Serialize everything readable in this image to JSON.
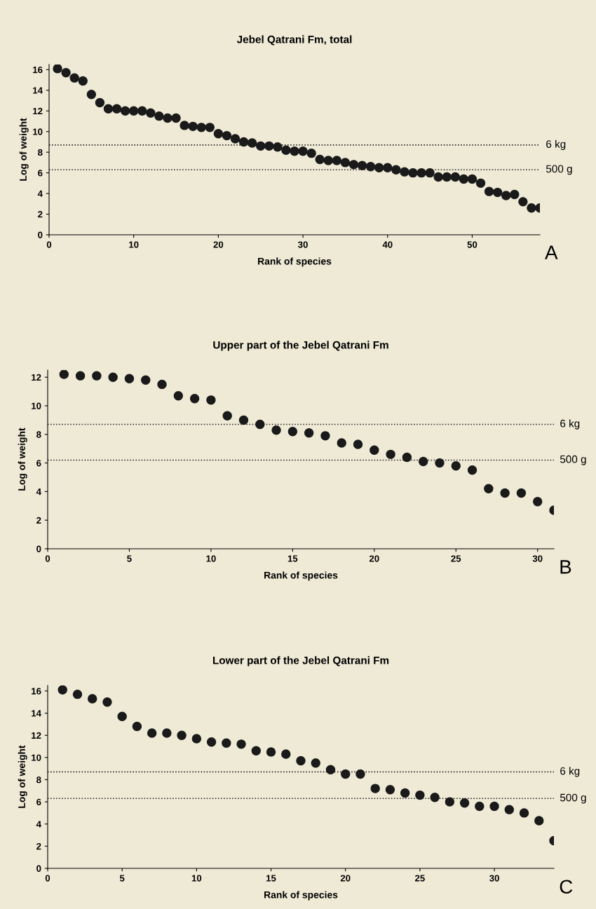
{
  "chart_data": [
    {
      "type": "scatter",
      "title": "Jebel Qatrani Fm, total",
      "xlabel": "Rank of species",
      "ylabel": "Log of weight",
      "marker": "circle",
      "grid": false,
      "legend": false,
      "x": [
        1,
        2,
        3,
        4,
        5,
        6,
        7,
        8,
        9,
        10,
        11,
        12,
        13,
        14,
        15,
        16,
        17,
        18,
        19,
        20,
        21,
        22,
        23,
        24,
        25,
        26,
        27,
        28,
        29,
        30,
        31,
        32,
        33,
        34,
        35,
        36,
        37,
        38,
        39,
        40,
        41,
        42,
        43,
        44,
        45,
        46,
        47,
        48,
        49,
        50,
        51,
        52,
        53,
        54,
        55,
        56,
        57,
        58
      ],
      "series": [
        {
          "color": "#1a1a1a",
          "values": [
            16.1,
            15.7,
            15.2,
            14.9,
            13.6,
            12.8,
            12.2,
            12.2,
            12.0,
            12.0,
            12.0,
            11.8,
            11.5,
            11.3,
            11.3,
            10.6,
            10.5,
            10.4,
            10.4,
            9.8,
            9.6,
            9.3,
            9.0,
            8.9,
            8.6,
            8.6,
            8.5,
            8.2,
            8.1,
            8.1,
            7.9,
            7.3,
            7.2,
            7.2,
            7.0,
            6.8,
            6.7,
            6.6,
            6.5,
            6.5,
            6.3,
            6.1,
            6.0,
            6.0,
            6.0,
            5.6,
            5.6,
            5.6,
            5.4,
            5.4,
            5.0,
            4.2,
            4.1,
            3.8,
            3.9,
            3.2,
            2.6,
            2.6
          ]
        }
      ],
      "xlim": [
        0,
        58
      ],
      "xticks": [
        0,
        10,
        20,
        30,
        40,
        50
      ],
      "ylim": [
        0,
        16.5
      ],
      "yticks": [
        0,
        2,
        4,
        6,
        8,
        10,
        12,
        14,
        16
      ],
      "ref_lines": [
        {
          "axis": "y",
          "value": 8.7,
          "label": "6 kg",
          "line_style": "dotted"
        },
        {
          "axis": "y",
          "value": 6.3,
          "label": "500 g",
          "line_style": "dotted"
        }
      ],
      "annotations": [
        "A"
      ]
    },
    {
      "type": "scatter",
      "title": "Upper part of the Jebel Qatrani Fm",
      "xlabel": "Rank of species",
      "ylabel": "Log of weight",
      "marker": "circle",
      "grid": false,
      "legend": false,
      "x": [
        1,
        2,
        3,
        4,
        5,
        6,
        7,
        8,
        9,
        10,
        11,
        12,
        13,
        14,
        15,
        16,
        17,
        18,
        19,
        20,
        21,
        22,
        23,
        24,
        25,
        26,
        27,
        28,
        29,
        30,
        31
      ],
      "series": [
        {
          "color": "#1a1a1a",
          "values": [
            12.2,
            12.1,
            12.1,
            12.0,
            11.9,
            11.8,
            11.5,
            10.7,
            10.5,
            10.4,
            9.3,
            9.0,
            8.7,
            8.3,
            8.2,
            8.1,
            7.9,
            7.4,
            7.3,
            6.9,
            6.6,
            6.4,
            6.1,
            6.0,
            5.8,
            5.5,
            4.2,
            3.9,
            3.9,
            3.3,
            2.7
          ]
        }
      ],
      "xlim": [
        0,
        31
      ],
      "xticks": [
        0,
        5,
        10,
        15,
        20,
        25,
        30
      ],
      "ylim": [
        0,
        12.5
      ],
      "yticks": [
        0,
        2,
        4,
        6,
        8,
        10,
        12
      ],
      "ref_lines": [
        {
          "axis": "y",
          "value": 8.7,
          "label": "6 kg",
          "line_style": "dotted"
        },
        {
          "axis": "y",
          "value": 6.2,
          "label": "500 g",
          "line_style": "dotted"
        }
      ],
      "annotations": [
        "B"
      ]
    },
    {
      "type": "scatter",
      "title": "Lower part of the Jebel Qatrani Fm",
      "xlabel": "Rank of species",
      "ylabel": "Log of weight",
      "marker": "circle",
      "grid": false,
      "legend": false,
      "x": [
        1,
        2,
        3,
        4,
        5,
        6,
        7,
        8,
        9,
        10,
        11,
        12,
        13,
        14,
        15,
        16,
        17,
        18,
        19,
        20,
        21,
        22,
        23,
        24,
        25,
        26,
        27,
        28,
        29,
        30,
        31,
        32,
        33,
        34
      ],
      "series": [
        {
          "color": "#1a1a1a",
          "values": [
            16.1,
            15.7,
            15.3,
            15.0,
            13.7,
            12.8,
            12.2,
            12.2,
            12.0,
            11.7,
            11.4,
            11.3,
            11.2,
            10.6,
            10.5,
            10.3,
            9.7,
            9.5,
            8.9,
            8.5,
            8.5,
            7.2,
            7.1,
            6.8,
            6.6,
            6.4,
            6.0,
            5.9,
            5.6,
            5.6,
            5.3,
            5.0,
            4.3,
            2.5
          ]
        }
      ],
      "xlim": [
        0,
        34
      ],
      "xticks": [
        0,
        5,
        10,
        15,
        20,
        25,
        30
      ],
      "ylim": [
        0,
        16.5
      ],
      "yticks": [
        0,
        2,
        4,
        6,
        8,
        10,
        12,
        14,
        16
      ],
      "ref_lines": [
        {
          "axis": "y",
          "value": 8.7,
          "label": "6 kg",
          "line_style": "dotted"
        },
        {
          "axis": "y",
          "value": 6.3,
          "label": "500 g",
          "line_style": "dotted"
        }
      ],
      "annotations": [
        "C"
      ]
    }
  ]
}
